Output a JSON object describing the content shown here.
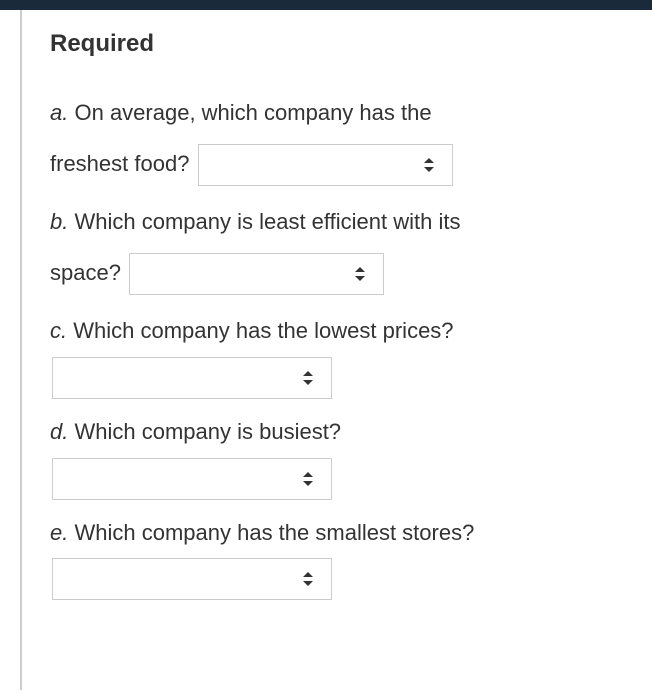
{
  "heading": "Required",
  "questions": {
    "a": {
      "label": "a.",
      "text_before": "On average, which company has the",
      "text_after": "freshest food?"
    },
    "b": {
      "label": "b.",
      "text_before": "Which company is least efficient with its",
      "text_after": "space?"
    },
    "c": {
      "label": "c.",
      "text": "Which company has the lowest prices?"
    },
    "d": {
      "label": "d.",
      "text": "Which company is busiest?"
    },
    "e": {
      "label": "e.",
      "text": "Which company has the smallest stores?"
    }
  },
  "colors": {
    "topbar": "#1a2a3a",
    "border": "#cccccc",
    "text": "#333333",
    "background": "#ffffff"
  }
}
